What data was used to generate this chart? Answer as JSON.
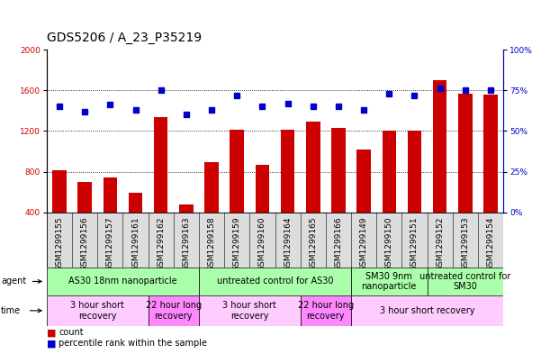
{
  "title": "GDS5206 / A_23_P35219",
  "samples": [
    "GSM1299155",
    "GSM1299156",
    "GSM1299157",
    "GSM1299161",
    "GSM1299162",
    "GSM1299163",
    "GSM1299158",
    "GSM1299159",
    "GSM1299160",
    "GSM1299164",
    "GSM1299165",
    "GSM1299166",
    "GSM1299149",
    "GSM1299150",
    "GSM1299151",
    "GSM1299152",
    "GSM1299153",
    "GSM1299154"
  ],
  "counts": [
    810,
    700,
    740,
    590,
    1340,
    480,
    890,
    1210,
    870,
    1210,
    1290,
    1230,
    1020,
    1200,
    1200,
    1700,
    1570,
    1560
  ],
  "percentiles": [
    65,
    62,
    66,
    63,
    75,
    60,
    63,
    72,
    65,
    67,
    65,
    65,
    63,
    73,
    72,
    76,
    75,
    75
  ],
  "bar_color": "#cc0000",
  "dot_color": "#0000cc",
  "ylim_left": [
    400,
    2000
  ],
  "ylim_right": [
    0,
    100
  ],
  "yticks_left": [
    400,
    800,
    1200,
    1600,
    2000
  ],
  "yticks_right": [
    0,
    25,
    50,
    75,
    100
  ],
  "agent_groups": [
    {
      "label": "AS30 18nm nanoparticle",
      "start": 0,
      "end": 6,
      "color": "#aaffaa"
    },
    {
      "label": "untreated control for AS30",
      "start": 6,
      "end": 12,
      "color": "#aaffaa"
    },
    {
      "label": "SM30 9nm\nnanoparticle",
      "start": 12,
      "end": 15,
      "color": "#aaffaa"
    },
    {
      "label": "untreated control for\nSM30",
      "start": 15,
      "end": 18,
      "color": "#aaffaa"
    }
  ],
  "time_groups": [
    {
      "label": "3 hour short\nrecovery",
      "start": 0,
      "end": 4,
      "color": "#ffccff"
    },
    {
      "label": "22 hour long\nrecovery",
      "start": 4,
      "end": 6,
      "color": "#ff88ff"
    },
    {
      "label": "3 hour short\nrecovery",
      "start": 6,
      "end": 10,
      "color": "#ffccff"
    },
    {
      "label": "22 hour long\nrecovery",
      "start": 10,
      "end": 12,
      "color": "#ff88ff"
    },
    {
      "label": "3 hour short recovery",
      "start": 12,
      "end": 18,
      "color": "#ffccff"
    }
  ],
  "legend_count_color": "#cc0000",
  "legend_pct_color": "#0000cc",
  "background_color": "#ffffff",
  "title_fontsize": 10,
  "tick_fontsize": 6.5,
  "annot_fontsize": 7
}
